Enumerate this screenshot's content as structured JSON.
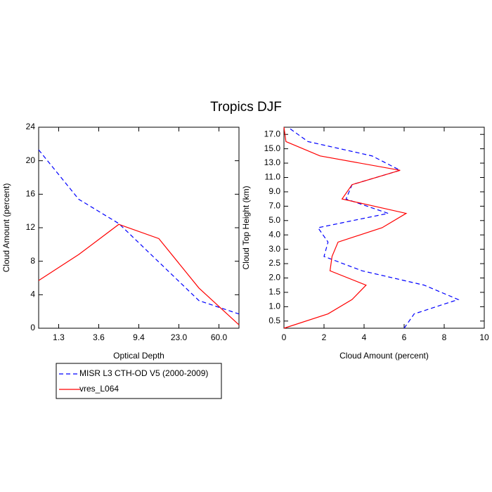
{
  "title": "Tropics DJF",
  "chart_data": [
    {
      "type": "line",
      "x_label": "Optical Depth",
      "y_label": "Cloud Amount (percent)",
      "x": [
        0,
        1,
        2,
        3,
        4,
        5
      ],
      "xlim": [
        0,
        5
      ],
      "xticks": [
        {
          "value": 0.5,
          "label": "1.3"
        },
        {
          "value": 1.5,
          "label": "3.6"
        },
        {
          "value": 2.5,
          "label": "9.4"
        },
        {
          "value": 3.5,
          "label": "23.0"
        },
        {
          "value": 4.5,
          "label": "60.0"
        }
      ],
      "ylim": [
        0,
        24
      ],
      "yticks": [
        0,
        4,
        8,
        12,
        16,
        20,
        24
      ],
      "series": [
        {
          "name": "MISR L3 CTH-OD V5 (2000-2009)",
          "color": "#0000ff",
          "dash": "dashed",
          "values": [
            21.3,
            15.4,
            12.5,
            7.9,
            3.3,
            1.7
          ]
        },
        {
          "name": "vres_L064",
          "color": "#ff0000",
          "dash": "solid",
          "values": [
            5.7,
            8.8,
            12.4,
            10.7,
            4.8,
            0.4
          ]
        }
      ]
    },
    {
      "type": "line",
      "x_label": "Cloud Amount (percent)",
      "y_label": "Cloud Top Height (km)",
      "y": [
        -0.5,
        0.5,
        1.5,
        2.5,
        3.5,
        4.5,
        5.5,
        6.5,
        7.5,
        8.5,
        9.5,
        10.5,
        11.5,
        12.5,
        13.5
      ],
      "ylim": [
        -0.5,
        13.5
      ],
      "yticks": [
        {
          "value": 0,
          "label": "0.5"
        },
        {
          "value": 1,
          "label": "1.0"
        },
        {
          "value": 2,
          "label": "1.5"
        },
        {
          "value": 3,
          "label": "2.0"
        },
        {
          "value": 4,
          "label": "2.5"
        },
        {
          "value": 5,
          "label": "3.0"
        },
        {
          "value": 6,
          "label": "4.0"
        },
        {
          "value": 7,
          "label": "5.0"
        },
        {
          "value": 8,
          "label": "7.0"
        },
        {
          "value": 9,
          "label": "9.0"
        },
        {
          "value": 10,
          "label": "11.0"
        },
        {
          "value": 11,
          "label": "13.0"
        },
        {
          "value": 12,
          "label": "15.0"
        },
        {
          "value": 13,
          "label": "17.0"
        }
      ],
      "xlim": [
        0,
        10
      ],
      "xticks": [
        0,
        2,
        4,
        6,
        8,
        10
      ],
      "series": [
        {
          "color": "#0000ff",
          "dash": "dashed",
          "values": [
            6.0,
            6.5,
            8.7,
            7.0,
            3.9,
            2.0,
            2.2,
            1.7,
            5.2,
            3.1,
            3.4,
            5.8,
            4.4,
            1.2,
            0.2
          ]
        },
        {
          "color": "#ff0000",
          "dash": "solid",
          "values": [
            0.0,
            2.2,
            3.4,
            4.1,
            2.3,
            2.4,
            2.7,
            4.9,
            6.1,
            2.9,
            3.4,
            5.8,
            1.8,
            0.1,
            0.0
          ]
        }
      ]
    }
  ]
}
